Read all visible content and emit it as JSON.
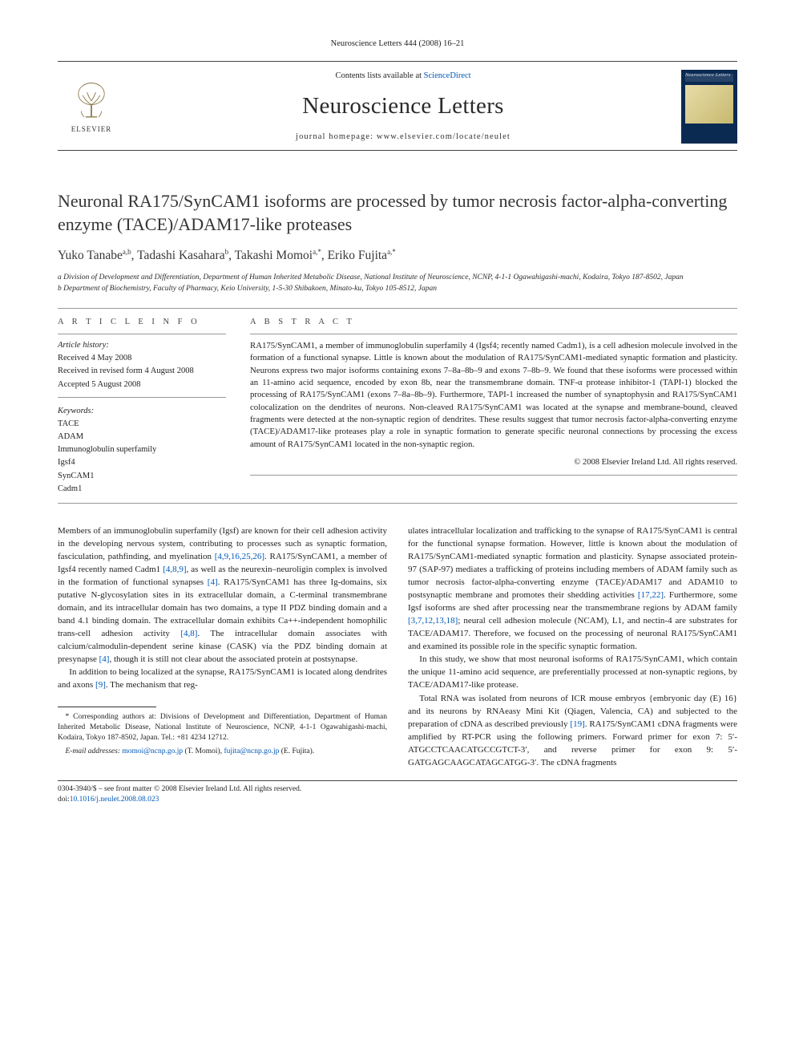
{
  "running_head": "Neuroscience Letters 444 (2008) 16–21",
  "masthead": {
    "contents_prefix": "Contents lists available at ",
    "contents_link": "ScienceDirect",
    "journal_name": "Neuroscience Letters",
    "homepage_label": "journal homepage: www.elsevier.com/locate/neulet",
    "elsevier_word": "ELSEVIER",
    "cover_label": "Neuroscience Letters"
  },
  "title": "Neuronal RA175/SynCAM1 isoforms are processed by tumor necrosis factor-alpha-converting enzyme (TACE)/ADAM17-like proteases",
  "authors_html": "Yuko Tanabe<sup>a,b</sup>, Tadashi Kasahara<sup>b</sup>, Takashi Momoi<sup>a,*</sup>, Eriko Fujita<sup>a,*</sup>",
  "affiliations": [
    "a Division of Development and Differentiation, Department of Human Inherited Metabolic Disease, National Institute of Neuroscience, NCNP, 4-1-1 Ogawahigashi-machi, Kodaira, Tokyo 187-8502, Japan",
    "b Department of Biochemistry, Faculty of Pharmacy, Keio University, 1-5-30 Shibakoen, Minato-ku, Tokyo 105-8512, Japan"
  ],
  "article_info": {
    "heading": "A R T I C L E   I N F O",
    "history_label": "Article history:",
    "history": [
      "Received 4 May 2008",
      "Received in revised form 4 August 2008",
      "Accepted 5 August 2008"
    ],
    "keywords_label": "Keywords:",
    "keywords": [
      "TACE",
      "ADAM",
      "Immunoglobulin superfamily",
      "Igsf4",
      "SynCAM1",
      "Cadm1"
    ]
  },
  "abstract": {
    "heading": "A B S T R A C T",
    "text": "RA175/SynCAM1, a member of immunoglobulin superfamily 4 (Igsf4; recently named Cadm1), is a cell adhesion molecule involved in the formation of a functional synapse. Little is known about the modulation of RA175/SynCAM1-mediated synaptic formation and plasticity. Neurons express two major isoforms containing exons 7–8a–8b–9 and exons 7–8b–9. We found that these isoforms were processed within an 11-amino acid sequence, encoded by exon 8b, near the transmembrane domain. TNF-α protease inhibitor-1 (TAPI-1) blocked the processing of RA175/SynCAM1 (exons 7–8a–8b–9). Furthermore, TAPI-1 increased the number of synaptophysin and RA175/SynCAM1 colocalization on the dendrites of neurons. Non-cleaved RA175/SynCAM1 was located at the synapse and membrane-bound, cleaved fragments were detected at the non-synaptic region of dendrites. These results suggest that tumor necrosis factor-alpha-converting enzyme (TACE)/ADAM17-like proteases play a role in synaptic formation to generate specific neuronal connections by processing the excess amount of RA175/SynCAM1 located in the non-synaptic region.",
    "copyright": "© 2008 Elsevier Ireland Ltd. All rights reserved."
  },
  "body": {
    "p1": "Members of an immunoglobulin superfamily (Igsf) are known for their cell adhesion activity in the developing nervous system, contributing to processes such as synaptic formation, fasciculation, pathfinding, and myelination [4,9,16,25,26]. RA175/SynCAM1, a member of Igsf4 recently named Cadm1 [4,8,9], as well as the neurexin–neuroligin complex is involved in the formation of functional synapses [4]. RA175/SynCAM1 has three Ig-domains, six putative N-glycosylation sites in its extracellular domain, a C-terminal transmembrane domain, and its intracellular domain has two domains, a type II PDZ binding domain and a band 4.1 binding domain. The extracellular domain exhibits Ca++-independent homophilic trans-cell adhesion activity [4,8]. The intracellular domain associates with calcium/calmodulin-dependent serine kinase (CASK) via the PDZ binding domain at presynapse [4], though it is still not clear about the associated protein at postsynapse.",
    "p2": "In addition to being localized at the synapse, RA175/SynCAM1 is located along dendrites and axons [9]. The mechanism that reg-",
    "p3": "ulates intracellular localization and trafficking to the synapse of RA175/SynCAM1 is central for the functional synapse formation. However, little is known about the modulation of RA175/SynCAM1-mediated synaptic formation and plasticity. Synapse associated protein-97 (SAP-97) mediates a trafficking of proteins including members of ADAM family such as tumor necrosis factor-alpha-converting enzyme (TACE)/ADAM17 and ADAM10 to postsynaptic membrane and promotes their shedding activities [17,22]. Furthermore, some Igsf isoforms are shed after processing near the transmembrane regions by ADAM family [3,7,12,13,18]; neural cell adhesion molecule (NCAM), L1, and nectin-4 are substrates for TACE/ADAM17. Therefore, we focused on the processing of neuronal RA175/SynCAM1 and examined its possible role in the specific synaptic formation.",
    "p4": "In this study, we show that most neuronal isoforms of RA175/SynCAM1, which contain the unique 11-amino acid sequence, are preferentially processed at non-synaptic regions, by TACE/ADAM17-like protease.",
    "p5": "Total RNA was isolated from neurons of ICR mouse embryos {embryonic day (E) 16} and its neurons by RNAeasy Mini Kit (Qiagen, Valencia, CA) and subjected to the preparation of cDNA as described previously [19]. RA175/SynCAM1 cDNA fragments were amplified by RT-PCR using the following primers. Forward primer for exon 7: 5′-ATGCCTCAACATGCCGTCT-3′, and reverse primer for exon 9: 5′-GATGAGCAAGCATAGCATGG-3′. The cDNA fragments"
  },
  "refs_inline": {
    "r1": "[4,9,16,25,26]",
    "r2": "[4,8,9]",
    "r3": "[4]",
    "r4": "[4,8]",
    "r5": "[4]",
    "r6": "[9]",
    "r7": "[17,22]",
    "r8": "[3,7,12,13,18]",
    "r9": "[19]"
  },
  "footnotes": {
    "corr": "* Corresponding authors at: Divisions of Development and Differentiation, Department of Human Inherited Metabolic Disease, National Institute of Neuroscience, NCNP, 4-1-1 Ogawahigashi-machi, Kodaira, Tokyo 187-8502, Japan. Tel.: +81 4234 12712.",
    "emails_label": "E-mail addresses: ",
    "email1": "momoi@ncnp.go.jp",
    "email1_who": " (T. Momoi), ",
    "email2": "fujita@ncnp.go.jp",
    "email2_who": " (E. Fujita)."
  },
  "bottom": {
    "line1": "0304-3940/$ – see front matter © 2008 Elsevier Ireland Ltd. All rights reserved.",
    "doi_label": "doi:",
    "doi": "10.1016/j.neulet.2008.08.023"
  },
  "colors": {
    "link": "#0058b8",
    "text": "#222222",
    "rule": "#999999",
    "masthead_cover_bg": "#0a2a52"
  }
}
